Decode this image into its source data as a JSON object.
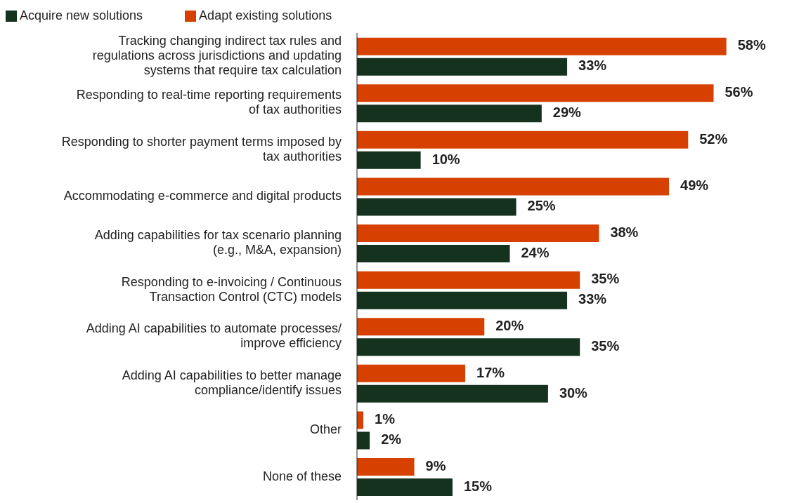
{
  "chart_data": {
    "type": "bar",
    "orientation": "horizontal",
    "legend": "top left",
    "categories": [
      "Tracking changing indirect tax rules and regulations across jurisdictions and updating systems that require tax calculation",
      "Responding to real-time reporting requirements of tax authorities",
      "Responding to shorter payment terms imposed by tax authorities",
      "Accommodating e-commerce and digital products",
      "Adding capabilities for tax scenario planning (e.g., M&A, expansion)",
      "Responding to e-invoicing / Continuous Transaction Control (CTC) models",
      "Adding AI capabilities to automate processes/ improve efficiency",
      "Adding AI capabilities to better manage compliance/identify issues",
      "Other",
      "None of these"
    ],
    "series": [
      {
        "name": "Adapt existing solutions",
        "color": "#d64000",
        "values": [
          58,
          56,
          52,
          49,
          38,
          35,
          20,
          17,
          1,
          9
        ],
        "value_labels": [
          "58%",
          "56%",
          "52%",
          "49%",
          "38%",
          "35%",
          "20%",
          "17%",
          "1%",
          "9%"
        ]
      },
      {
        "name": "Acquire new solutions",
        "color": "#15321e",
        "values": [
          33,
          29,
          10,
          25,
          24,
          33,
          35,
          30,
          2,
          15
        ],
        "value_labels": [
          "33%",
          "29%",
          "10%",
          "25%",
          "24%",
          "33%",
          "35%",
          "30%",
          "2%",
          "15%"
        ]
      }
    ]
  }
}
